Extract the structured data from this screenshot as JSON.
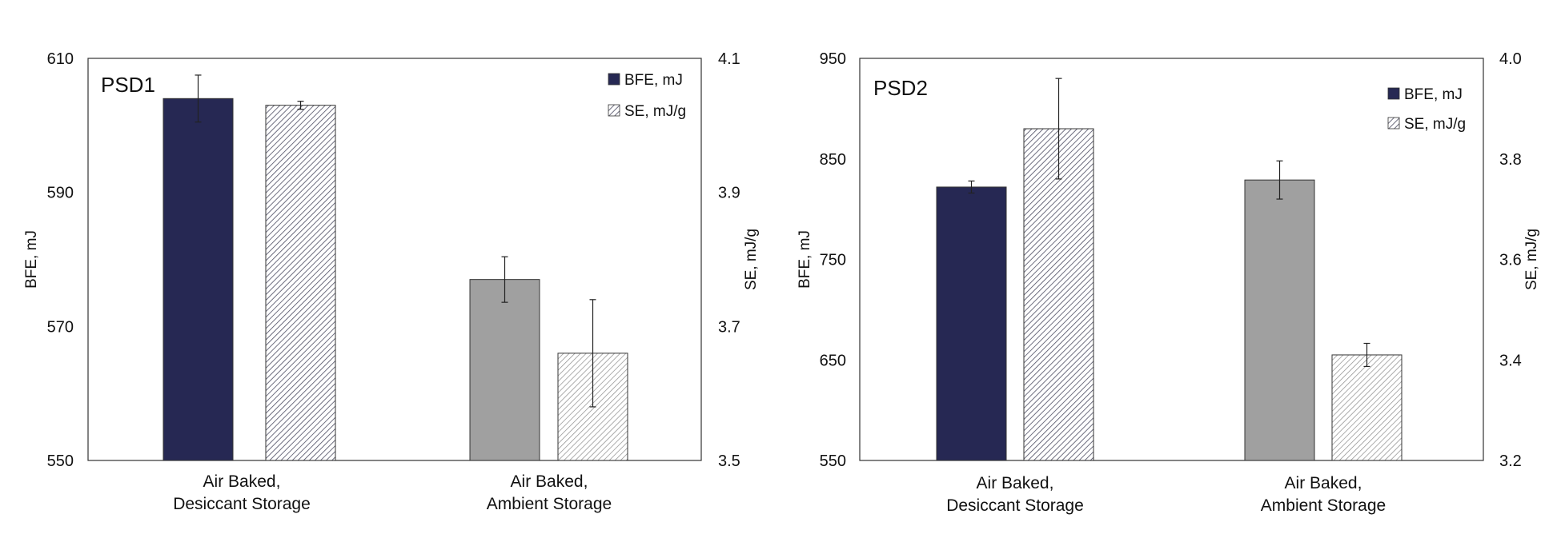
{
  "colors": {
    "bfe_desiccant": "#262853",
    "bfe_ambient": "#a0a0a0",
    "se_hatch_desiccant": "#4a4a60",
    "se_hatch_ambient": "#8a8a8a",
    "frame": "#333333"
  },
  "chart_data": [
    {
      "type": "bar",
      "title": "PSD1",
      "categories": [
        [
          "Air Baked,",
          "Desiccant Storage"
        ],
        [
          "Air Baked,",
          "Ambient Storage"
        ]
      ],
      "ylabel": "BFE, mJ",
      "y2label": "SE, mJ/g",
      "ylim": [
        550,
        610
      ],
      "yticks": [
        "550",
        "570",
        "590",
        "610"
      ],
      "y2lim": [
        3.5,
        4.1
      ],
      "y2ticks": [
        "3.5",
        "3.7",
        "3.9",
        "4.1"
      ],
      "legend": {
        "position": "top-right",
        "entries": [
          "BFE, mJ",
          "SE, mJ/g"
        ]
      },
      "series": [
        {
          "name": "BFE, mJ",
          "axis": "left",
          "values": [
            604,
            577
          ],
          "errors": [
            3.5,
            3.4
          ]
        },
        {
          "name": "SE, mJ/g",
          "axis": "right",
          "values": [
            4.03,
            3.66
          ],
          "errors": [
            0.006,
            0.08
          ]
        }
      ]
    },
    {
      "type": "bar",
      "title": "PSD2",
      "categories": [
        [
          "Air Baked,",
          "Desiccant Storage"
        ],
        [
          "Air Baked,",
          "Ambient Storage"
        ]
      ],
      "ylabel": "BFE, mJ",
      "y2label": "SE, mJ/g",
      "ylim": [
        550,
        950
      ],
      "yticks": [
        "550",
        "650",
        "750",
        "850",
        "950"
      ],
      "y2lim": [
        3.2,
        4.0
      ],
      "y2ticks": [
        "3.2",
        "3.4",
        "3.6",
        "3.8",
        "4.0"
      ],
      "legend": {
        "position": "top-right",
        "entries": [
          "BFE, mJ",
          "SE, mJ/g"
        ]
      },
      "series": [
        {
          "name": "BFE, mJ",
          "axis": "left",
          "values": [
            822,
            829
          ],
          "errors": [
            6,
            19
          ]
        },
        {
          "name": "SE, mJ/g",
          "axis": "right",
          "values": [
            3.86,
            3.41
          ],
          "errors": [
            0.1,
            0.023
          ]
        }
      ]
    }
  ]
}
